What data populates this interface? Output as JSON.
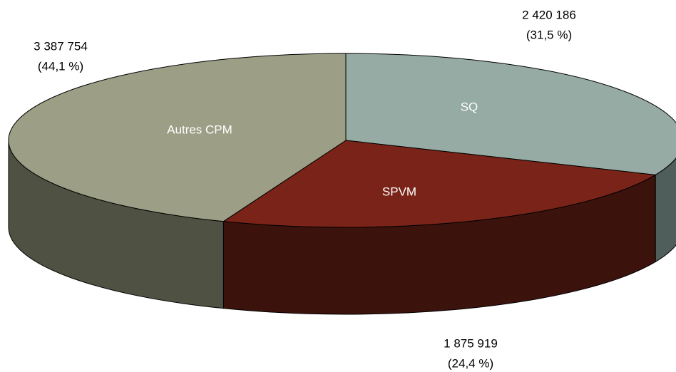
{
  "chart_data": {
    "type": "pie3d",
    "categories": [
      "SQ",
      "SPVM",
      "Autres CPM"
    ],
    "values": [
      2420186,
      1875919,
      3387754
    ],
    "value_labels": [
      "2 420 186",
      "1 875 919",
      "3 387 754"
    ],
    "percent_labels": [
      "(31,5 %)",
      "(24,4 %)",
      "(44,1 %)"
    ],
    "colors": [
      "#95aba3",
      "#7a2318",
      "#9c9f86"
    ],
    "side_colors": [
      "#4f5e5a",
      "#3c120d",
      "#4f5142"
    ]
  }
}
